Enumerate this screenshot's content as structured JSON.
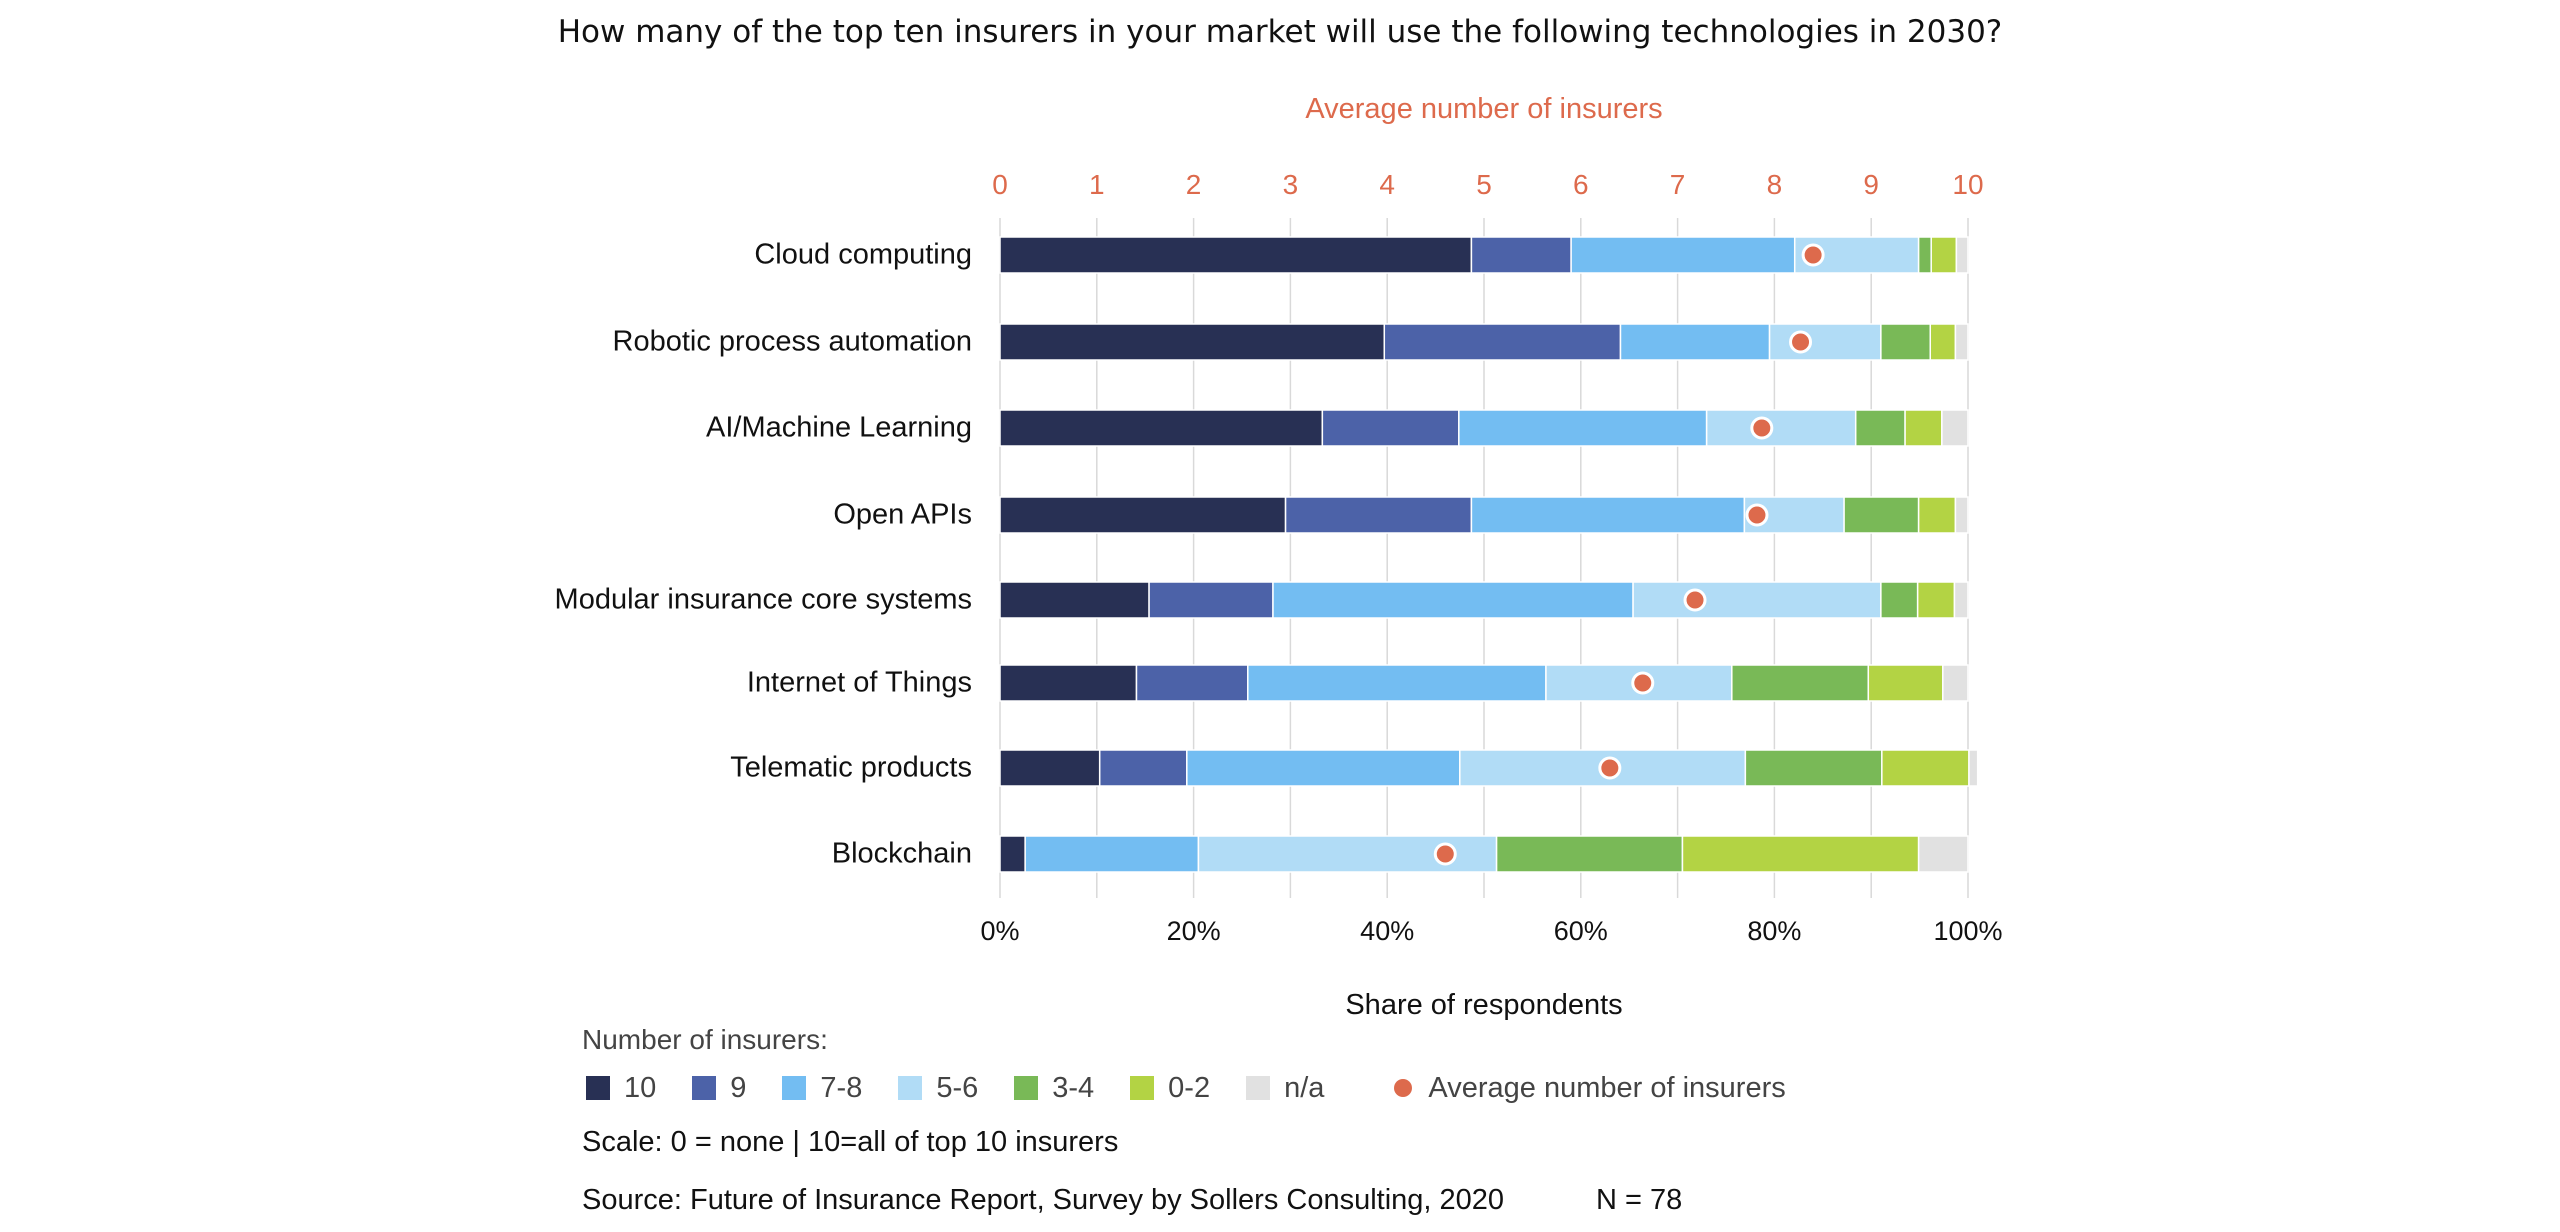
{
  "title": "How many of the top ten insurers in your market will use the following technologies in 2030?",
  "chart_data": {
    "type": "bar",
    "orientation": "horizontal",
    "stacked": true,
    "top_axis_label": "Average number of insurers",
    "top_axis_ticks": [
      "0",
      "1",
      "2",
      "3",
      "4",
      "5",
      "6",
      "7",
      "8",
      "9",
      "10"
    ],
    "top_axis_range": [
      0,
      10
    ],
    "xlabel": "Share of respondents",
    "x_ticks": [
      "0%",
      "20%",
      "40%",
      "60%",
      "80%",
      "100%"
    ],
    "xlim": [
      0,
      100
    ],
    "grid": true,
    "categories": [
      "Cloud computing",
      "Robotic process automation",
      "AI/Machine Learning",
      "Open APIs",
      "Modular insurance core systems",
      "Internet of Things",
      "Telematic products",
      "Blockchain"
    ],
    "series": [
      {
        "name": "10",
        "color": "#283054",
        "values": [
          48.7,
          39.7,
          33.3,
          29.5,
          15.4,
          14.1,
          10.3,
          2.6
        ]
      },
      {
        "name": "9",
        "color": "#4c62a8",
        "values": [
          10.3,
          24.4,
          14.1,
          19.2,
          12.8,
          11.5,
          9.0,
          0.0
        ]
      },
      {
        "name": "7-8",
        "color": "#73bdf2",
        "values": [
          23.1,
          15.4,
          25.6,
          28.2,
          37.2,
          30.8,
          28.2,
          17.9
        ]
      },
      {
        "name": "5-6",
        "color": "#b1dcf6",
        "values": [
          12.8,
          11.5,
          15.4,
          10.3,
          25.6,
          19.2,
          29.5,
          30.8
        ]
      },
      {
        "name": "3-4",
        "color": "#79b957",
        "values": [
          1.3,
          5.1,
          5.1,
          7.7,
          3.8,
          14.1,
          14.1,
          19.2
        ]
      },
      {
        "name": "0-2",
        "color": "#b3d344",
        "values": [
          2.6,
          2.6,
          3.8,
          3.8,
          3.8,
          7.7,
          9.0,
          24.4
        ]
      },
      {
        "name": "n/a",
        "color": "#e1e1e1",
        "values": [
          1.2,
          1.3,
          2.7,
          1.3,
          1.4,
          2.6,
          0.9,
          5.1
        ]
      }
    ],
    "average_series": {
      "name": "Average number of insurers",
      "color": "#dd6a4c",
      "values": [
        8.4,
        8.27,
        7.87,
        7.82,
        7.18,
        6.64,
        6.3,
        4.6
      ]
    },
    "legend_caption": "Number of insurers:",
    "legend_placement": "bottom"
  },
  "notes": {
    "scale": "Scale: 0 = none | 10=all of top 10 insurers",
    "source": "Source: Future of Insurance Report, Survey by Sollers Consulting, 2020",
    "n": "N = 78"
  }
}
